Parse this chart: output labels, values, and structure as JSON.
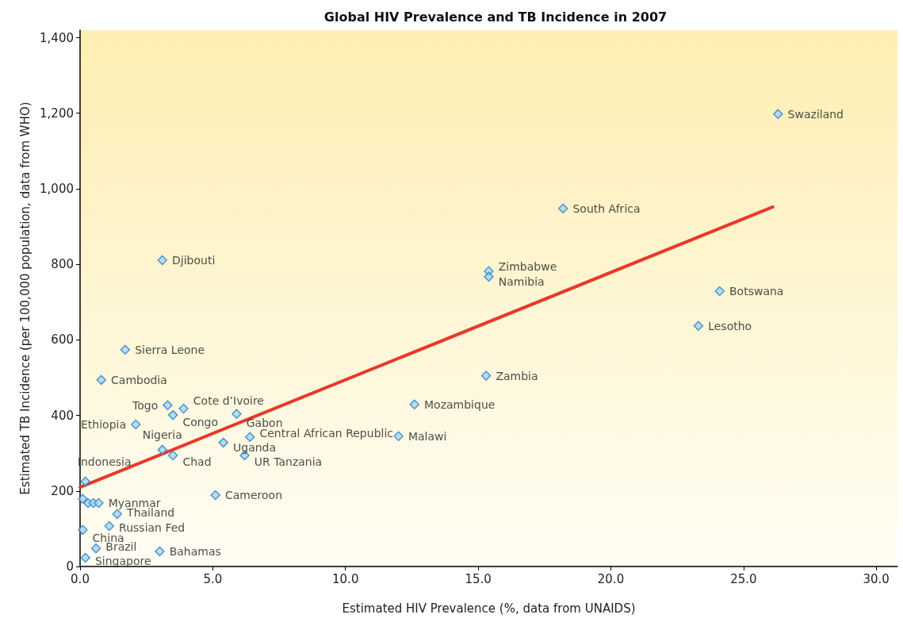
{
  "chart_data": {
    "type": "scatter",
    "title": "Global HIV Prevalence and TB Incidence in 2007",
    "xlabel": "Estimated HIV Prevalence (%, data from UNAIDS)",
    "ylabel": "Estimated TB Incidence (per 100,000 population, data from WHO)",
    "xlim": [
      0,
      30.8
    ],
    "ylim": [
      0,
      1420
    ],
    "xticks": [
      {
        "value": 0,
        "label": "0.0"
      },
      {
        "value": 5,
        "label": "5.0"
      },
      {
        "value": 10,
        "label": "10.0"
      },
      {
        "value": 15,
        "label": "15.0"
      },
      {
        "value": 20,
        "label": "20.0"
      },
      {
        "value": 25,
        "label": "25.0"
      },
      {
        "value": 30,
        "label": "30.0"
      }
    ],
    "yticks": [
      0,
      200,
      400,
      600,
      800,
      {
        "value": 1000,
        "label": "1,000"
      },
      {
        "value": 1200,
        "label": "1,200"
      },
      {
        "value": 1400,
        "label": "1,400"
      }
    ],
    "grid": false,
    "marker": "diamond",
    "series": [
      {
        "color": "#a8d4f5",
        "x": [
          26.3,
          18.2,
          3.1,
          15.4,
          15.4,
          24.1,
          23.3,
          1.7,
          15.3,
          0.8,
          12.6,
          3.3,
          3.9,
          3.5,
          5.9,
          2.1,
          6.4,
          12.0,
          5.4,
          3.1,
          3.5,
          6.2,
          0.2,
          5.1,
          0.1,
          0.3,
          0.5,
          0.7,
          1.4,
          1.1,
          0.1,
          0.6,
          3.0,
          0.2
        ],
        "values": [
          1198,
          948,
          811,
          782,
          767,
          729,
          637,
          574,
          505,
          494,
          429,
          427,
          418,
          401,
          404,
          376,
          343,
          345,
          328,
          309,
          294,
          294,
          225,
          189,
          179,
          168,
          168,
          168,
          139,
          107,
          97,
          48,
          40,
          23
        ],
        "value_labels": [
          "Swaziland",
          "South Africa",
          "Djibouti",
          "Zimbabwe",
          "Namibia",
          "Botswana",
          "Lesotho",
          "Sierra Leone",
          "Zambia",
          "Cambodia",
          "Mozambique",
          "Togo",
          "Cote d’Ivoire",
          "Congo",
          "Gabon",
          "Ethiopia",
          "Central African Republic",
          "Malawi",
          "Uganda",
          "Nigeria",
          "Chad",
          "UR Tanzania",
          "Indonesia",
          "Cameroon",
          null,
          null,
          null,
          "Myanmar",
          "Thailand",
          "Russian Fed",
          "China",
          "Brazil",
          "Bahamas",
          "Singapore"
        ]
      },
      {
        "type": "line",
        "color": "#e8392a",
        "marker": "none",
        "line_style": "solid",
        "x": [
          0,
          26.1
        ],
        "values": [
          210,
          952
        ]
      }
    ]
  }
}
